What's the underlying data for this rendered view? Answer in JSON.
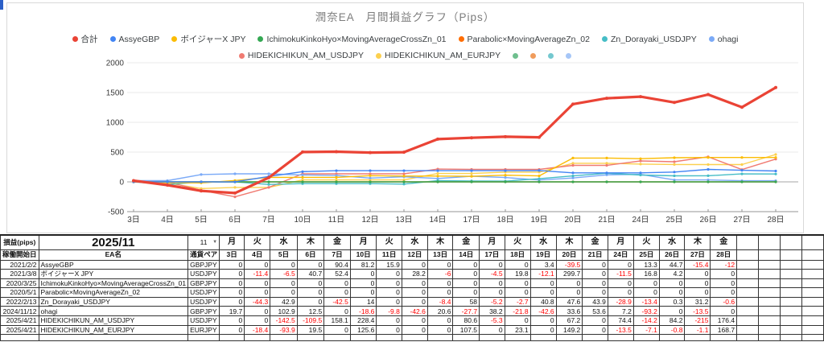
{
  "page": {
    "accent_color": "#2b5fc7"
  },
  "icons": {
    "dropdown_caret": "▼"
  },
  "chart": {
    "title": "潤奈EA　月間損益グラフ（Pips）",
    "legend_rows": [
      [
        {
          "label": "合計",
          "color": "#EA4335"
        },
        {
          "label": "AssyeGBP",
          "color": "#4285F4"
        },
        {
          "label": "ボイジャーX JPY",
          "color": "#FBBC04"
        },
        {
          "label": "IchimokuKinkoHyo×MovingAverageCrossZn_01",
          "color": "#34A853"
        },
        {
          "label": "Parabolic×MovingAverageZn_02",
          "color": "#FF6D01"
        },
        {
          "label": "Zn_Dorayaki_USDJPY",
          "color": "#46BDC6"
        },
        {
          "label": "ohagi",
          "color": "#7BAAF7"
        }
      ],
      [
        {
          "label": "HIDEKICHIKUN_AM_USDJPY",
          "color": "#F07B72"
        },
        {
          "label": "HIDEKICHIKUN_AM_EURJPY",
          "color": "#FCD04F"
        },
        {
          "label": "",
          "color": "#6FBF8E"
        },
        {
          "label": "",
          "color": "#F09C5C"
        },
        {
          "label": "",
          "color": "#74C8CF"
        },
        {
          "label": "",
          "color": "#A6C6F7"
        }
      ]
    ]
  },
  "chart_data": {
    "type": "line",
    "cumulative": true,
    "x": [
      "3日",
      "4日",
      "5日",
      "6日",
      "7日",
      "10日",
      "11日",
      "12日",
      "13日",
      "14日",
      "17日",
      "18日",
      "19日",
      "20日",
      "21日",
      "24日",
      "25日",
      "26日",
      "27日",
      "28日"
    ],
    "ylim": [
      -500,
      2000
    ],
    "yticks": [
      2000,
      1500,
      1000,
      500,
      0,
      -500
    ],
    "grid": true,
    "legend_position": "top",
    "series": [
      {
        "key": "total",
        "name": "合計",
        "color": "#EA4335",
        "daily": [
          19.7,
          -74.1,
          -97.1,
          -36.8,
          258.4,
          430.6,
          6.1,
          -14.4,
          6.2,
          218.4,
          23.2,
          18.4,
          -10.5,
          557.8,
          97.5,
          27.7,
          -97.8,
          132.6,
          -213.8,
          332.5
        ]
      },
      {
        "key": "assye-gbp",
        "name": "AssyeGBP",
        "color": "#4285F4",
        "daily": [
          0,
          0,
          0,
          0,
          90.4,
          81.2,
          15.9,
          0,
          0,
          0,
          0,
          0,
          3.4,
          -39.5,
          0,
          0,
          13.3,
          44.7,
          -15.4,
          -12
        ]
      },
      {
        "key": "voyager-x-jpy",
        "name": "ボイジャーX JPY",
        "color": "#FBBC04",
        "daily": [
          0,
          -11.4,
          -6.5,
          40.7,
          52.4,
          0,
          0,
          28.2,
          -6,
          0,
          -4.5,
          19.8,
          -12.1,
          299.7,
          0,
          -11.5,
          16.8,
          4.2,
          0,
          0
        ]
      },
      {
        "key": "ichimoku",
        "name": "IchimokuKinkoHyo×MovingAverageCrossZn_01",
        "color": "#34A853",
        "daily": [
          0,
          0,
          0,
          0,
          0,
          0,
          0,
          0,
          0,
          0,
          0,
          0,
          0,
          0,
          0,
          0,
          0,
          0,
          0,
          0
        ]
      },
      {
        "key": "parabolic",
        "name": "Parabolic×MovingAverageZn_02",
        "color": "#FF6D01",
        "daily": [
          0,
          0,
          0,
          0,
          0,
          0,
          0,
          0,
          0,
          0,
          0,
          0,
          0,
          0,
          0,
          0,
          0,
          0,
          0,
          0
        ]
      },
      {
        "key": "zn-dorayaki",
        "name": "Zn_Dorayaki_USDJPY",
        "color": "#46BDC6",
        "daily": [
          0,
          -44.3,
          42.9,
          0,
          -42.5,
          14,
          0,
          0,
          -8.4,
          58,
          -5.2,
          -2.7,
          40.8,
          47.6,
          43.9,
          -28.9,
          -13.4,
          0.3,
          31.2,
          -0.6
        ]
      },
      {
        "key": "ohagi",
        "name": "ohagi",
        "color": "#7BAAF7",
        "daily": [
          19.7,
          0,
          102.9,
          12.5,
          0,
          -18.6,
          -9.8,
          -42.6,
          20.6,
          -27.7,
          38.2,
          -21.8,
          -42.6,
          33.6,
          53.6,
          7.2,
          -93.2,
          0,
          -13.5,
          0
        ]
      },
      {
        "key": "hidekichikun-usdjpy",
        "name": "HIDEKICHIKUN_AM_USDJPY",
        "color": "#F07B72",
        "daily": [
          0,
          0,
          -142.5,
          -109.5,
          158.1,
          228.4,
          0,
          0,
          0,
          80.6,
          -5.3,
          0,
          0,
          67.2,
          0,
          74.4,
          -14.2,
          84.2,
          -215,
          176.4
        ]
      },
      {
        "key": "hidekichikun-eurjpy",
        "name": "HIDEKICHIKUN_AM_EURJPY",
        "color": "#FCD04F",
        "daily": [
          0,
          -18.4,
          -93.9,
          19.5,
          0,
          125.6,
          0,
          0,
          0,
          107.5,
          0,
          23.1,
          0,
          149.2,
          0,
          -13.5,
          -7.1,
          -0.8,
          -1.1,
          168.7
        ]
      }
    ]
  },
  "table": {
    "title_cell": "損益(pips)",
    "month_label": "2025/11",
    "month_dropdown": "11",
    "col_headers": {
      "start_date": "稼働開始日",
      "ea_name": "EA名",
      "pair": "通貨ペア"
    },
    "weekdays": [
      "月",
      "火",
      "水",
      "木",
      "金",
      "月",
      "火",
      "水",
      "木",
      "金",
      "月",
      "火",
      "水",
      "木",
      "金",
      "月",
      "火",
      "水",
      "木",
      "金"
    ],
    "days": [
      "3日",
      "4日",
      "5日",
      "6日",
      "7日",
      "10日",
      "11日",
      "12日",
      "13日",
      "14日",
      "17日",
      "18日",
      "19日",
      "20日",
      "21日",
      "24日",
      "25日",
      "26日",
      "27日",
      "28日"
    ],
    "rows": [
      {
        "start": "2021/2/2",
        "name": "AssyeGBP",
        "pair": "GBPJPY",
        "values": [
          "0",
          "0",
          "0",
          "0",
          "90.4",
          "81.2",
          "15.9",
          "0",
          "0",
          "0",
          "0",
          "0",
          "3.4",
          "-39.5",
          "0",
          "0",
          "13.3",
          "44.7",
          "-15.4",
          "-12"
        ]
      },
      {
        "start": "2021/3/8",
        "name": "ボイジャーX JPY",
        "pair": "USDJPY",
        "values": [
          "0",
          "-11.4",
          "-6.5",
          "40.7",
          "52.4",
          "0",
          "0",
          "28.2",
          "-6",
          "0",
          "-4.5",
          "19.8",
          "-12.1",
          "299.7",
          "0",
          "-11.5",
          "16.8",
          "4.2",
          "0",
          "0"
        ]
      },
      {
        "start": "2020/3/25",
        "name": "IchimokuKinkoHyo×MovingAverageCrossZn_01",
        "pair": "GBPJPY",
        "values": [
          "0",
          "0",
          "0",
          "0",
          "0",
          "0",
          "0",
          "0",
          "0",
          "0",
          "0",
          "0",
          "0",
          "0",
          "0",
          "0",
          "0",
          "0",
          "0",
          "0"
        ]
      },
      {
        "start": "2020/5/1",
        "name": "Parabolic×MovingAverageZn_02",
        "pair": "USDJPY",
        "values": [
          "0",
          "0",
          "0",
          "0",
          "0",
          "0",
          "0",
          "0",
          "0",
          "0",
          "0",
          "0",
          "0",
          "0",
          "0",
          "0",
          "0",
          "0",
          "0",
          "0"
        ]
      },
      {
        "start": "2022/2/13",
        "name": "Zn_Dorayaki_USDJPY",
        "pair": "USDJPY",
        "values": [
          "0",
          "-44.3",
          "42.9",
          "0",
          "-42.5",
          "14",
          "0",
          "0",
          "-8.4",
          "58",
          "-5.2",
          "-2.7",
          "40.8",
          "47.6",
          "43.9",
          "-28.9",
          "-13.4",
          "0.3",
          "31.2",
          "-0.6"
        ]
      },
      {
        "start": "2024/11/12",
        "name": "ohagi",
        "pair": "GBPJPY",
        "values": [
          "19.7",
          "0",
          "102.9",
          "12.5",
          "0",
          "-18.6",
          "-9.8",
          "-42.6",
          "20.6",
          "-27.7",
          "38.2",
          "-21.8",
          "-42.6",
          "33.6",
          "53.6",
          "7.2",
          "-93.2",
          "0",
          "-13.5",
          "0"
        ]
      },
      {
        "start": "2025/4/21",
        "name": "HIDEKICHIKUN_AM_USDJPY",
        "pair": "USDJPY",
        "values": [
          "0",
          "0",
          "-142.5",
          "-109.5",
          "158.1",
          "228.4",
          "0",
          "0",
          "0",
          "80.6",
          "-5.3",
          "0",
          "0",
          "67.2",
          "0",
          "74.4",
          "-14.2",
          "84.2",
          "-215",
          "176.4"
        ]
      },
      {
        "start": "2025/4/21",
        "name": "HIDEKICHIKUN_AM_EURJPY",
        "pair": "EURJPY",
        "values": [
          "0",
          "-18.4",
          "-93.9",
          "19.5",
          "0",
          "125.6",
          "0",
          "0",
          "0",
          "107.5",
          "0",
          "23.1",
          "0",
          "149.2",
          "0",
          "-13.5",
          "-7.1",
          "-0.8",
          "-1.1",
          "168.7"
        ]
      }
    ],
    "empty_trailing_columns": 4
  }
}
